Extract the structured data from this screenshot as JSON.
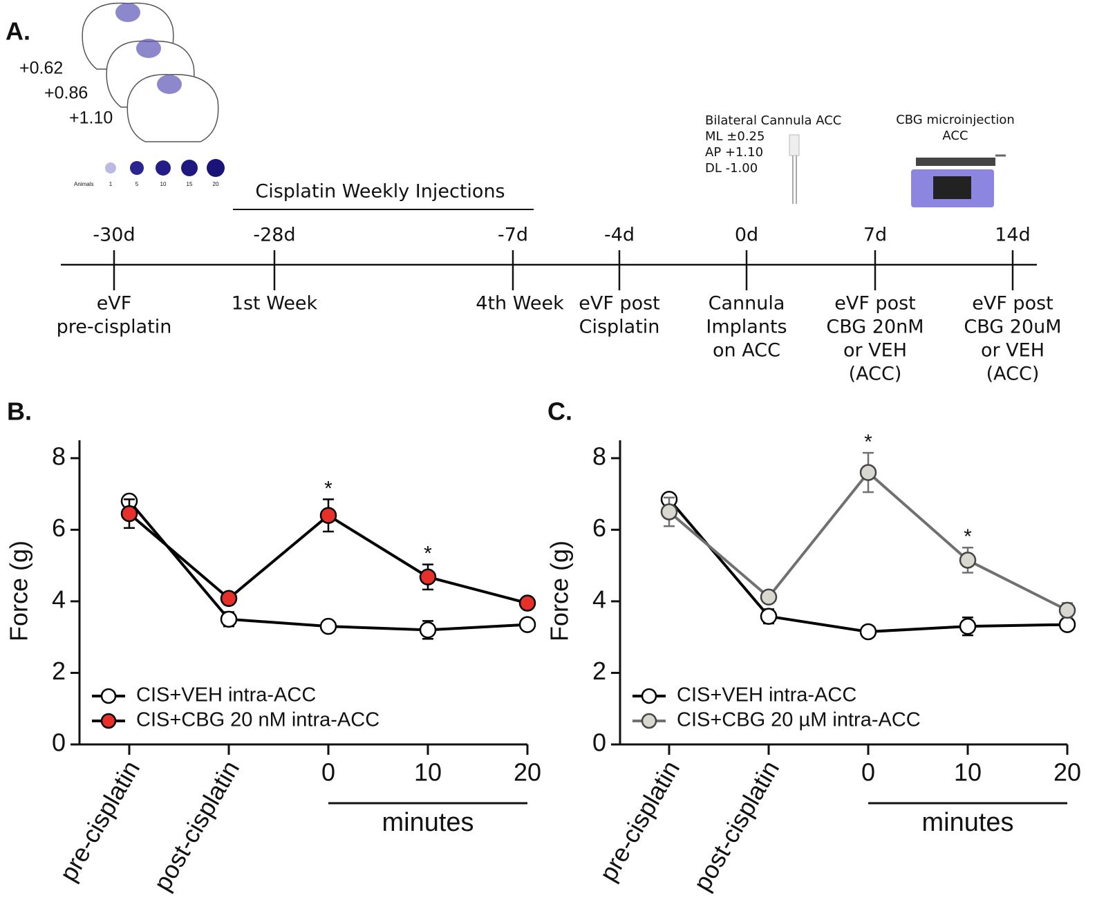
{
  "panel_a": {
    "label": "A.",
    "brain_coords": [
      "+0.62",
      "+0.86",
      "+1.10"
    ],
    "heatmap_label": "Animals",
    "heatmap_scale": [
      "1",
      "5",
      "10",
      "15",
      "20"
    ],
    "bracket_label": "Cisplatin Weekly Injections",
    "cannula_label": [
      "Bilateral Cannula ACC",
      "ML ±0.25",
      "AP +1.10",
      "DL -1.00"
    ],
    "pump_label": [
      "CBG microinjection",
      "ACC"
    ],
    "timeline": [
      {
        "day": "-30d",
        "event": [
          "eVF",
          "pre-cisplatin"
        ]
      },
      {
        "day": "-28d",
        "event": [
          "1st Week"
        ]
      },
      {
        "day": "-7d",
        "event": [
          "4th Week"
        ]
      },
      {
        "day": "-4d",
        "event": [
          "eVF post",
          "Cisplatin"
        ]
      },
      {
        "day": "0d",
        "event": [
          "Cannula",
          "Implants",
          "on ACC"
        ]
      },
      {
        "day": "7d",
        "event": [
          "eVF post",
          "CBG 20nM",
          "or VEH",
          "(ACC)"
        ]
      },
      {
        "day": "14d",
        "event": [
          "eVF post",
          "CBG 20uM",
          "or VEH",
          "(ACC)"
        ]
      }
    ]
  },
  "chart_data": [
    {
      "type": "line",
      "panel": "B.",
      "ylabel": "Force (g)",
      "xlabel": "minutes",
      "categories": [
        "pre-cisplatin",
        "post-cisplatin",
        "0",
        "10",
        "20"
      ],
      "ylim": [
        0,
        8.5
      ],
      "yticks": [
        0,
        2,
        4,
        6,
        8
      ],
      "legend": "lower left",
      "series": [
        {
          "name": "CIS+VEH intra-ACC",
          "color": "#000000",
          "marker_fill": "#ffffff",
          "values": [
            6.8,
            3.5,
            3.3,
            3.2,
            3.35
          ],
          "errors": [
            0.15,
            0.2,
            0.15,
            0.25,
            0.15
          ]
        },
        {
          "name": "CIS+CBG 20 nM intra-ACC",
          "color": "#000000",
          "marker_fill": "#e8302a",
          "values": [
            6.45,
            4.08,
            6.4,
            4.68,
            3.95
          ],
          "errors": [
            0.4,
            0.15,
            0.45,
            0.35,
            0.15
          ],
          "value_annotations": [
            null,
            null,
            "*",
            "*",
            null
          ]
        }
      ]
    },
    {
      "type": "line",
      "panel": "C.",
      "ylabel": "Force (g)",
      "xlabel": "minutes",
      "categories": [
        "pre-cisplatin",
        "post-cisplatin",
        "0",
        "10",
        "20"
      ],
      "ylim": [
        0,
        8.5
      ],
      "yticks": [
        0,
        2,
        4,
        6,
        8
      ],
      "legend": "lower left",
      "series": [
        {
          "name": "CIS+VEH intra-ACC",
          "color": "#000000",
          "marker_fill": "#ffffff",
          "values": [
            6.85,
            3.58,
            3.15,
            3.3,
            3.35
          ],
          "errors": [
            0.12,
            0.2,
            0.12,
            0.25,
            0.15
          ]
        },
        {
          "name": "CIS+CBG 20 µM intra-ACC",
          "color": "#707070",
          "marker_fill": "#d8d8d0",
          "values": [
            6.5,
            4.12,
            7.6,
            5.15,
            3.75
          ],
          "errors": [
            0.4,
            0.15,
            0.55,
            0.35,
            0.2
          ],
          "value_annotations": [
            null,
            null,
            "*",
            "*",
            null
          ]
        }
      ]
    }
  ]
}
